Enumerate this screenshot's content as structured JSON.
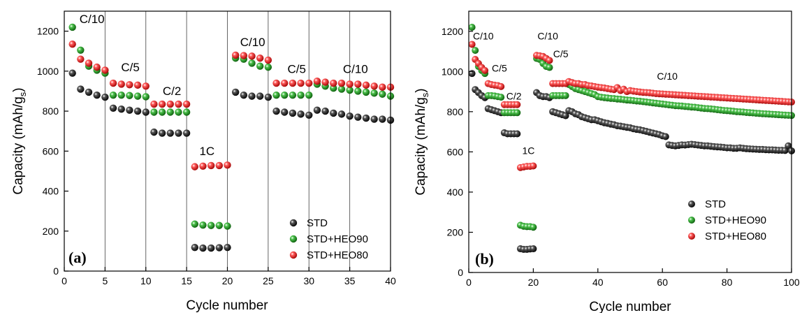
{
  "chart_data": [
    {
      "type": "scatter",
      "panel_label": "(a)",
      "xlabel": "Cycle number",
      "ylabel_main": "Capacity (mAh/g",
      "ylabel_sub": "s",
      "ylabel_end": ")",
      "xlim": [
        0,
        40
      ],
      "ylim": [
        0,
        1300
      ],
      "xticks": [
        0,
        5,
        10,
        15,
        20,
        25,
        30,
        35,
        40
      ],
      "yticks": [
        0,
        200,
        400,
        600,
        800,
        1000,
        1200
      ],
      "grid": false,
      "rate_boundaries": [
        5,
        10,
        15,
        20,
        25,
        30,
        35
      ],
      "annotations": [
        {
          "text": "C/10",
          "x": 3.4,
          "y": 1240
        },
        {
          "text": "C/5",
          "x": 8.1,
          "y": 1000
        },
        {
          "text": "C/2",
          "x": 13.2,
          "y": 880
        },
        {
          "text": "1C",
          "x": 17.5,
          "y": 580
        },
        {
          "text": "C/10",
          "x": 23.1,
          "y": 1125
        },
        {
          "text": "C/5",
          "x": 28.5,
          "y": 990
        },
        {
          "text": "C/10",
          "x": 35.7,
          "y": 990
        }
      ],
      "legend_position": "lower-right",
      "series": [
        {
          "name": "STD",
          "color": "#000000",
          "x": [
            1,
            2,
            3,
            4,
            5,
            6,
            7,
            8,
            9,
            10,
            11,
            12,
            13,
            14,
            15,
            16,
            17,
            18,
            19,
            20,
            21,
            22,
            23,
            24,
            25,
            26,
            27,
            28,
            29,
            30,
            31,
            32,
            33,
            34,
            35,
            36,
            37,
            38,
            39,
            40
          ],
          "y": [
            990,
            910,
            895,
            880,
            870,
            815,
            810,
            805,
            800,
            795,
            695,
            690,
            690,
            690,
            690,
            118,
            115,
            115,
            117,
            118,
            895,
            880,
            875,
            875,
            870,
            800,
            795,
            790,
            785,
            780,
            805,
            800,
            790,
            785,
            775,
            770,
            765,
            760,
            760,
            755
          ]
        },
        {
          "name": "STD+HEO90",
          "color": "#1f8f1f",
          "x": [
            1,
            2,
            3,
            4,
            5,
            6,
            7,
            8,
            9,
            10,
            11,
            12,
            13,
            14,
            15,
            16,
            17,
            18,
            19,
            20,
            21,
            22,
            23,
            24,
            25,
            26,
            27,
            28,
            29,
            30,
            31,
            32,
            33,
            34,
            35,
            36,
            37,
            38,
            39,
            40
          ],
          "y": [
            1220,
            1105,
            1025,
            1005,
            990,
            880,
            880,
            878,
            875,
            872,
            795,
            795,
            795,
            795,
            795,
            235,
            230,
            228,
            228,
            225,
            1065,
            1060,
            1040,
            1025,
            1020,
            880,
            880,
            880,
            880,
            880,
            935,
            925,
            915,
            910,
            905,
            900,
            895,
            890,
            885,
            875
          ]
        },
        {
          "name": "STD+HEO80",
          "color": "#e52020",
          "x": [
            1,
            2,
            3,
            4,
            5,
            6,
            7,
            8,
            9,
            10,
            11,
            12,
            13,
            14,
            15,
            16,
            17,
            18,
            19,
            20,
            21,
            22,
            23,
            24,
            25,
            26,
            27,
            28,
            29,
            30,
            31,
            32,
            33,
            34,
            35,
            36,
            37,
            38,
            39,
            40
          ],
          "y": [
            1135,
            1060,
            1040,
            1020,
            1005,
            940,
            935,
            932,
            930,
            925,
            835,
            835,
            835,
            835,
            835,
            522,
            525,
            528,
            528,
            530,
            1080,
            1078,
            1075,
            1065,
            1055,
            940,
            940,
            940,
            940,
            940,
            950,
            945,
            940,
            940,
            935,
            935,
            930,
            925,
            920,
            920
          ]
        }
      ]
    },
    {
      "type": "scatter",
      "panel_label": "(b)",
      "xlabel": "Cycle number",
      "ylabel_main": "Capacity (mAh/g",
      "ylabel_sub": "s",
      "ylabel_end": ")",
      "xlim": [
        0,
        100
      ],
      "ylim": [
        0,
        1300
      ],
      "xticks": [
        0,
        20,
        40,
        60,
        80,
        100
      ],
      "yticks": [
        0,
        200,
        400,
        600,
        800,
        1000,
        1200
      ],
      "grid": false,
      "annotations": [
        {
          "text": "C/10",
          "x": 4.5,
          "y": 1160
        },
        {
          "text": "C/5",
          "x": 9.5,
          "y": 1000
        },
        {
          "text": "C/2",
          "x": 14,
          "y": 860
        },
        {
          "text": "1C",
          "x": 18.5,
          "y": 590
        },
        {
          "text": "C/10",
          "x": 24.5,
          "y": 1160
        },
        {
          "text": "C/5",
          "x": 28.5,
          "y": 1070
        },
        {
          "text": "C/10",
          "x": 61.5,
          "y": 960
        }
      ],
      "legend_position": "lower-right",
      "series": [
        {
          "name": "STD",
          "color": "#000000",
          "x": [
            1,
            2,
            3,
            4,
            5,
            6,
            7,
            8,
            9,
            10,
            11,
            12,
            13,
            14,
            15,
            16,
            17,
            18,
            19,
            20,
            21,
            22,
            23,
            24,
            25,
            26,
            27,
            28,
            29,
            30,
            31,
            32,
            33,
            34,
            35,
            36,
            37,
            38,
            39,
            40,
            41,
            42,
            43,
            44,
            45,
            46,
            47,
            48,
            49,
            50,
            51,
            52,
            53,
            54,
            55,
            56,
            57,
            58,
            59,
            60,
            61,
            62,
            63,
            64,
            65,
            66,
            67,
            68,
            69,
            70,
            71,
            72,
            73,
            74,
            75,
            76,
            77,
            78,
            79,
            80,
            81,
            82,
            83,
            84,
            85,
            86,
            87,
            88,
            89,
            90,
            91,
            92,
            93,
            94,
            95,
            96,
            97,
            98,
            99,
            100
          ],
          "y": [
            990,
            910,
            895,
            880,
            870,
            815,
            810,
            805,
            800,
            795,
            695,
            690,
            690,
            690,
            690,
            118,
            115,
            115,
            117,
            118,
            895,
            880,
            875,
            875,
            870,
            800,
            795,
            790,
            785,
            780,
            805,
            800,
            790,
            785,
            775,
            770,
            765,
            760,
            760,
            755,
            750,
            745,
            742,
            738,
            735,
            730,
            728,
            725,
            722,
            720,
            715,
            712,
            710,
            706,
            702,
            698,
            694,
            690,
            686,
            680,
            676,
            635,
            632,
            630,
            632,
            635,
            634,
            636,
            638,
            636,
            634,
            632,
            630,
            630,
            628,
            626,
            625,
            624,
            622,
            620,
            620,
            618,
            618,
            620,
            618,
            616,
            615,
            614,
            613,
            612,
            612,
            611,
            610,
            610,
            609,
            608,
            608,
            607,
            630,
            605
          ]
        },
        {
          "name": "STD+HEO90",
          "color": "#1f8f1f",
          "x": [
            1,
            2,
            3,
            4,
            5,
            6,
            7,
            8,
            9,
            10,
            11,
            12,
            13,
            14,
            15,
            16,
            17,
            18,
            19,
            20,
            21,
            22,
            23,
            24,
            25,
            26,
            27,
            28,
            29,
            30,
            31,
            32,
            33,
            34,
            35,
            36,
            37,
            38,
            39,
            40,
            41,
            42,
            43,
            44,
            45,
            46,
            47,
            48,
            49,
            50,
            51,
            52,
            53,
            54,
            55,
            56,
            57,
            58,
            59,
            60,
            61,
            62,
            63,
            64,
            65,
            66,
            67,
            68,
            69,
            70,
            71,
            72,
            73,
            74,
            75,
            76,
            77,
            78,
            79,
            80,
            81,
            82,
            83,
            84,
            85,
            86,
            87,
            88,
            89,
            90,
            91,
            92,
            93,
            94,
            95,
            96,
            97,
            98,
            99,
            100
          ],
          "y": [
            1220,
            1105,
            1025,
            1005,
            990,
            880,
            880,
            878,
            875,
            872,
            795,
            795,
            795,
            795,
            795,
            235,
            230,
            228,
            228,
            225,
            1065,
            1060,
            1040,
            1025,
            1020,
            880,
            880,
            880,
            880,
            880,
            935,
            925,
            915,
            910,
            905,
            900,
            895,
            890,
            885,
            875,
            872,
            870,
            868,
            866,
            865,
            863,
            862,
            860,
            858,
            857,
            855,
            853,
            852,
            850,
            848,
            846,
            844,
            842,
            840,
            838,
            836,
            834,
            832,
            830,
            829,
            828,
            826,
            825,
            823,
            822,
            820,
            818,
            816,
            815,
            814,
            812,
            810,
            808,
            806,
            805,
            804,
            802,
            800,
            799,
            798,
            796,
            795,
            794,
            792,
            791,
            790,
            789,
            788,
            787,
            786,
            785,
            784,
            783,
            782,
            781
          ]
        },
        {
          "name": "STD+HEO80",
          "color": "#e52020",
          "x": [
            1,
            2,
            3,
            4,
            5,
            6,
            7,
            8,
            9,
            10,
            11,
            12,
            13,
            14,
            15,
            16,
            17,
            18,
            19,
            20,
            21,
            22,
            23,
            24,
            25,
            26,
            27,
            28,
            29,
            30,
            31,
            32,
            33,
            34,
            35,
            36,
            37,
            38,
            39,
            40,
            41,
            42,
            43,
            44,
            45,
            46,
            47,
            48,
            49,
            50,
            51,
            52,
            53,
            54,
            55,
            56,
            57,
            58,
            59,
            60,
            61,
            62,
            63,
            64,
            65,
            66,
            67,
            68,
            69,
            70,
            71,
            72,
            73,
            74,
            75,
            76,
            77,
            78,
            79,
            80,
            81,
            82,
            83,
            84,
            85,
            86,
            87,
            88,
            89,
            90,
            91,
            92,
            93,
            94,
            95,
            96,
            97,
            98,
            99,
            100
          ],
          "y": [
            1135,
            1060,
            1040,
            1020,
            1005,
            940,
            935,
            932,
            930,
            925,
            835,
            835,
            835,
            835,
            835,
            522,
            525,
            528,
            528,
            530,
            1080,
            1078,
            1075,
            1065,
            1055,
            940,
            940,
            940,
            940,
            940,
            950,
            945,
            940,
            940,
            935,
            935,
            930,
            928,
            925,
            922,
            920,
            918,
            915,
            912,
            910,
            920,
            905,
            912,
            900,
            905,
            902,
            900,
            898,
            896,
            895,
            894,
            892,
            890,
            889,
            888,
            887,
            886,
            885,
            884,
            883,
            882,
            881,
            880,
            879,
            878,
            877,
            876,
            875,
            874,
            873,
            872,
            871,
            870,
            869,
            868,
            867,
            866,
            865,
            864,
            863,
            862,
            861,
            860,
            859,
            858,
            857,
            856,
            855,
            854,
            853,
            852,
            851,
            850,
            849,
            848
          ]
        }
      ]
    }
  ]
}
